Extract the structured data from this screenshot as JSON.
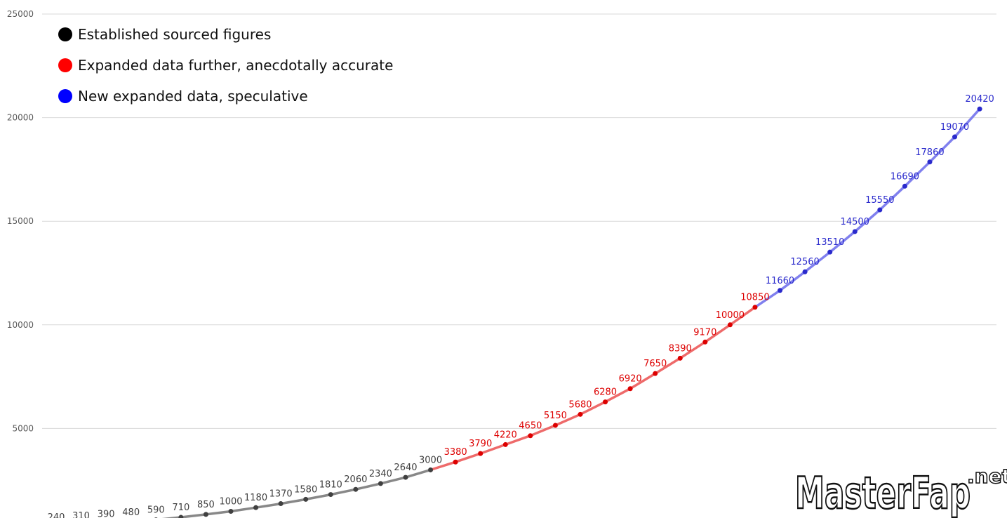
{
  "chart_data": {
    "type": "line",
    "ylim": [
      0,
      25000
    ],
    "yticks": [
      5000,
      10000,
      15000,
      20000,
      25000
    ],
    "grid": true,
    "legend_position": "top-left",
    "series": [
      {
        "name": "Established sourced figures",
        "color": "#000000",
        "line_color": "#888888",
        "label_color": "#404040",
        "values": [
          240,
          310,
          390,
          480,
          590,
          710,
          850,
          1000,
          1180,
          1370,
          1580,
          1810,
          2060,
          2340,
          2640,
          3000
        ]
      },
      {
        "name": "Expanded data further, anecdotally accurate",
        "color": "#ff0000",
        "line_color": "#ee6a6a",
        "label_color": "#dd0000",
        "values": [
          3380,
          3790,
          4220,
          4650,
          5150,
          5680,
          6280,
          6920,
          7650,
          8390,
          9170,
          10000,
          10850
        ]
      },
      {
        "name": "New expanded data, speculative",
        "color": "#0000ff",
        "line_color": "#8080ee",
        "label_color": "#2a2acc",
        "values": [
          11660,
          12560,
          13510,
          14500,
          15550,
          16690,
          17860,
          19070,
          20420
        ]
      }
    ]
  },
  "watermark": {
    "main": "MasterFap",
    "suffix": ".net"
  }
}
